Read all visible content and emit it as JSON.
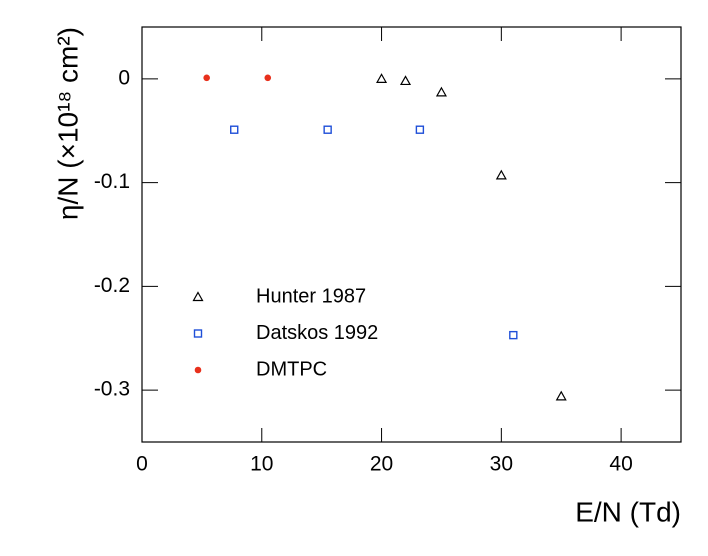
{
  "chart_data": {
    "type": "scatter",
    "xlabel": "E/N (Td)",
    "ylabel": "η/N (×10¹⁸ cm²)",
    "xlim": [
      0,
      45
    ],
    "xticks": [
      0,
      10,
      20,
      30,
      40
    ],
    "ylim": [
      -0.35,
      0.05
    ],
    "yticks": [
      0,
      -0.1,
      -0.2,
      -0.3
    ],
    "legend": "lower left",
    "series": [
      {
        "name": "Hunter 1987",
        "color": "#000000",
        "marker": "triangle-open",
        "x": [
          20,
          22,
          25,
          30,
          35
        ],
        "values": [
          0,
          -0.002,
          -0.013,
          -0.093,
          -0.306
        ]
      },
      {
        "name": "Datskos 1992",
        "color": "#1f4fd8",
        "marker": "square-open",
        "x": [
          7.7,
          15.5,
          23.2,
          31
        ],
        "values": [
          -0.049,
          -0.049,
          -0.049,
          -0.247
        ]
      },
      {
        "name": "DMTPC",
        "color": "#e8301c",
        "marker": "circle-filled",
        "x": [
          5.4,
          10.5
        ],
        "values": [
          0.001,
          0.001
        ]
      }
    ]
  }
}
